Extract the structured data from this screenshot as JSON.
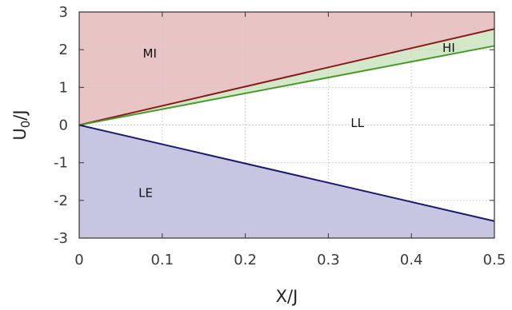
{
  "chart_data": {
    "type": "area",
    "xlabel": "X/J",
    "ylabel_main": "U",
    "ylabel_sub": "0",
    "ylabel_tail": "/J",
    "xlim": [
      0,
      0.5
    ],
    "ylim": [
      -3,
      3
    ],
    "x_ticks": [
      0,
      0.1,
      0.2,
      0.3,
      0.4,
      0.5
    ],
    "x_tick_labels": [
      "0",
      "0.1",
      "0.2",
      "0.3",
      "0.4",
      "0.5"
    ],
    "y_ticks": [
      3,
      2,
      1,
      0,
      -1,
      -2,
      -3
    ],
    "y_tick_labels": [
      "3",
      "2",
      "1",
      "0",
      "-1",
      "-2",
      "-3"
    ],
    "grid": true,
    "series": [
      {
        "name": "",
        "color": "#8b1a1a",
        "x": [
          0,
          0.5
        ],
        "y": [
          0,
          2.55
        ]
      },
      {
        "name": "",
        "color": "#4a9a2a",
        "x": [
          0,
          0.5
        ],
        "y": [
          0,
          2.1
        ]
      },
      {
        "name": "",
        "color": "#1a1a6e",
        "x": [
          0,
          0.5
        ],
        "y": [
          0,
          -2.55
        ]
      }
    ],
    "region_colors": {
      "MI": "#e8c4c4",
      "HI": "#d2e8c8",
      "LE": "#c6c6e2"
    },
    "regions": [
      {
        "label": "MI",
        "x": 0.085,
        "y": 1.9
      },
      {
        "label": "HI",
        "x": 0.445,
        "y": 2.05
      },
      {
        "label": "LL",
        "x": 0.335,
        "y": 0.05
      },
      {
        "label": "LE",
        "x": 0.08,
        "y": -1.8
      }
    ]
  }
}
